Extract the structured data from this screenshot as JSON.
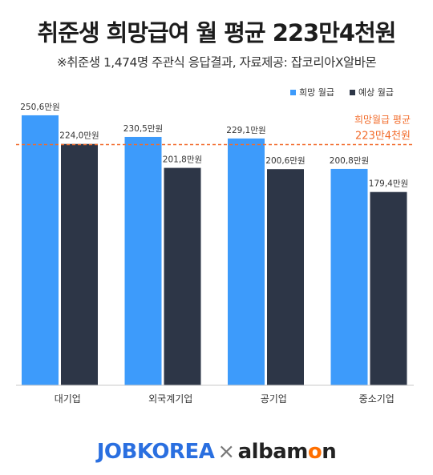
{
  "title": "취준생 희망급여 월 평균 223만4천원",
  "subtitle": "※취준생 1,474명 주관식 응답결과,  자료제공: 잡코리아X알바몬",
  "footer": {
    "brand_left": "JOBKOREA",
    "separator": "×",
    "brand_right_a": "albam",
    "brand_right_o": "o",
    "brand_right_b": "n"
  },
  "chart_data": {
    "type": "bar",
    "categories": [
      "대기업",
      "외국계기업",
      "공기업",
      "중소기업"
    ],
    "series": [
      {
        "name": "희망 월급",
        "values": [
          250.6,
          230.5,
          229.1,
          200.8
        ],
        "labels": [
          "250,6만원",
          "230,5만원",
          "229,1만원",
          "200,8만원"
        ]
      },
      {
        "name": "예상 월급",
        "values": [
          224.0,
          201.8,
          200.6,
          179.4
        ],
        "labels": [
          "224,0만원",
          "201,8만원",
          "200,6만원",
          "179,4만원"
        ]
      }
    ],
    "reference_line": {
      "value": 223.4,
      "label_line1": "희망월급 평균",
      "label_line2": "223만4천원"
    },
    "ylim": [
      0,
      263.5
    ],
    "grid": false,
    "legend": "top-right"
  },
  "colors": {
    "series_1": "#3d9bfb",
    "series_2": "#2d3647",
    "reference": "#f26b2a",
    "axis": "#c8c8c8"
  }
}
